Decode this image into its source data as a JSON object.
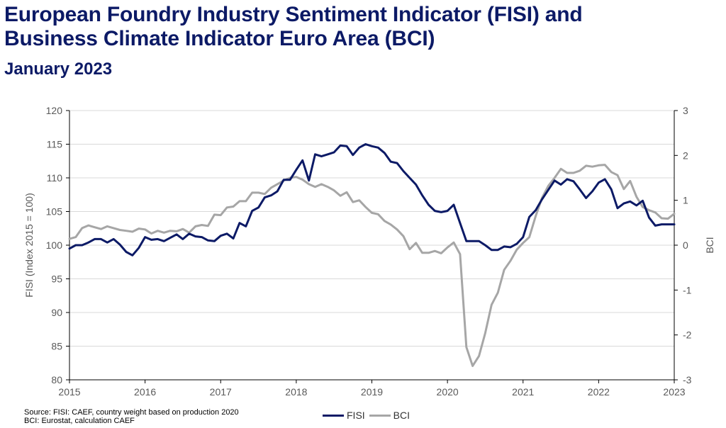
{
  "title_line1": "European Foundry Industry Sentiment Indicator (FISI) and",
  "title_line2": "Business Climate Indicator Euro Area (BCI)",
  "subtitle": "January 2023",
  "source_line1": "Source: FISI: CAEF, country weight based on production 2020",
  "source_line2": "BCI: Eurostat, calculation CAEF",
  "colors": {
    "fisi": "#0c1a66",
    "bci": "#a6a6a6"
  },
  "chart_data": {
    "type": "line",
    "x_unit": "year",
    "x_ticks": [
      "2015",
      "2016",
      "2017",
      "2018",
      "2019",
      "2020",
      "2021",
      "2022",
      "2023"
    ],
    "x_range": [
      2015,
      2023
    ],
    "ylabel": "FISI (Index 2015 = 100)",
    "ylim": [
      80,
      120
    ],
    "y_ticks": [
      "80",
      "85",
      "90",
      "95",
      "100",
      "105",
      "110",
      "115",
      "120"
    ],
    "y2label": "BCI",
    "y2lim": [
      -3,
      3
    ],
    "y2_ticks": [
      "-3",
      "-2",
      "-1",
      "0",
      "1",
      "2",
      "3"
    ],
    "grid": "horizontal",
    "legend_position": "bottom",
    "series": [
      {
        "name": "FISI",
        "axis": "left",
        "x": [
          2015.0,
          2015.083,
          2015.167,
          2015.25,
          2015.333,
          2015.417,
          2015.5,
          2015.583,
          2015.667,
          2015.75,
          2015.833,
          2015.917,
          2016.0,
          2016.083,
          2016.167,
          2016.25,
          2016.333,
          2016.417,
          2016.5,
          2016.583,
          2016.667,
          2016.75,
          2016.833,
          2016.917,
          2017.0,
          2017.083,
          2017.167,
          2017.25,
          2017.333,
          2017.417,
          2017.5,
          2017.583,
          2017.667,
          2017.75,
          2017.833,
          2017.917,
          2018.0,
          2018.083,
          2018.167,
          2018.25,
          2018.333,
          2018.417,
          2018.5,
          2018.583,
          2018.667,
          2018.75,
          2018.833,
          2018.917,
          2019.0,
          2019.083,
          2019.167,
          2019.25,
          2019.333,
          2019.417,
          2019.5,
          2019.583,
          2019.667,
          2019.75,
          2019.833,
          2019.917,
          2020.0,
          2020.083,
          2020.167,
          2020.25,
          2020.333,
          2020.417,
          2020.5,
          2020.583,
          2020.667,
          2020.75,
          2020.833,
          2020.917,
          2021.0,
          2021.083,
          2021.167,
          2021.25,
          2021.333,
          2021.417,
          2021.5,
          2021.583,
          2021.667,
          2021.75,
          2021.833,
          2021.917,
          2022.0,
          2022.083,
          2022.167,
          2022.25,
          2022.333,
          2022.417,
          2022.5,
          2022.583,
          2022.667,
          2022.75,
          2022.833,
          2022.917,
          2023.0
        ],
        "values": [
          99.5,
          100.0,
          100.0,
          100.4,
          100.9,
          100.9,
          100.4,
          100.9,
          100.1,
          99.0,
          98.5,
          99.6,
          101.2,
          100.8,
          100.9,
          100.6,
          101.1,
          101.6,
          100.9,
          101.7,
          101.3,
          101.2,
          100.7,
          100.6,
          101.4,
          101.7,
          101.0,
          103.3,
          102.8,
          105.1,
          105.6,
          107.1,
          107.4,
          108.0,
          109.7,
          109.7,
          111.2,
          112.6,
          109.6,
          113.5,
          113.2,
          113.5,
          113.8,
          114.8,
          114.7,
          113.4,
          114.5,
          115.0,
          114.7,
          114.5,
          113.7,
          112.4,
          112.2,
          111.0,
          110.0,
          109.0,
          107.4,
          106.0,
          105.1,
          104.9,
          105.1,
          106.0,
          103.3,
          100.6,
          100.6,
          100.6,
          100.0,
          99.3,
          99.3,
          99.8,
          99.7,
          100.2,
          101.2,
          104.2,
          105.2,
          106.8,
          108.2,
          109.6,
          109.0,
          109.8,
          109.5,
          108.3,
          107.0,
          108.0,
          109.3,
          109.8,
          108.3,
          105.5,
          106.2,
          106.5,
          105.9,
          106.6,
          104.1,
          102.9,
          103.1,
          103.1,
          103.1
        ]
      },
      {
        "name": "BCI",
        "axis": "right",
        "x": [
          2015.0,
          2015.083,
          2015.167,
          2015.25,
          2015.333,
          2015.417,
          2015.5,
          2015.583,
          2015.667,
          2015.75,
          2015.833,
          2015.917,
          2016.0,
          2016.083,
          2016.167,
          2016.25,
          2016.333,
          2016.417,
          2016.5,
          2016.583,
          2016.667,
          2016.75,
          2016.833,
          2016.917,
          2017.0,
          2017.083,
          2017.167,
          2017.25,
          2017.333,
          2017.417,
          2017.5,
          2017.583,
          2017.667,
          2017.75,
          2017.833,
          2017.917,
          2018.0,
          2018.083,
          2018.167,
          2018.25,
          2018.333,
          2018.417,
          2018.5,
          2018.583,
          2018.667,
          2018.75,
          2018.833,
          2018.917,
          2019.0,
          2019.083,
          2019.167,
          2019.25,
          2019.333,
          2019.417,
          2019.5,
          2019.583,
          2019.667,
          2019.75,
          2019.833,
          2019.917,
          2020.0,
          2020.083,
          2020.167,
          2020.25,
          2020.333,
          2020.417,
          2020.5,
          2020.583,
          2020.667,
          2020.75,
          2020.833,
          2020.917,
          2021.0,
          2021.083,
          2021.167,
          2021.25,
          2021.333,
          2021.417,
          2021.5,
          2021.583,
          2021.667,
          2021.75,
          2021.833,
          2021.917,
          2022.0,
          2022.083,
          2022.167,
          2022.25,
          2022.333,
          2022.417,
          2022.5,
          2022.583,
          2022.667,
          2022.75,
          2022.833,
          2022.917,
          2023.0
        ],
        "values": [
          0.14,
          0.18,
          0.38,
          0.44,
          0.4,
          0.36,
          0.42,
          0.38,
          0.34,
          0.32,
          0.3,
          0.37,
          0.35,
          0.26,
          0.32,
          0.28,
          0.32,
          0.31,
          0.36,
          0.28,
          0.42,
          0.45,
          0.43,
          0.68,
          0.67,
          0.84,
          0.86,
          0.98,
          0.98,
          1.17,
          1.17,
          1.14,
          1.28,
          1.36,
          1.44,
          1.5,
          1.52,
          1.46,
          1.36,
          1.3,
          1.36,
          1.3,
          1.22,
          1.1,
          1.18,
          0.96,
          1.0,
          0.85,
          0.72,
          0.69,
          0.54,
          0.46,
          0.35,
          0.2,
          -0.09,
          0.05,
          -0.17,
          -0.17,
          -0.13,
          -0.18,
          -0.05,
          0.06,
          -0.2,
          -2.27,
          -2.69,
          -2.47,
          -1.96,
          -1.33,
          -1.06,
          -0.55,
          -0.35,
          -0.1,
          0.05,
          0.18,
          0.65,
          1.05,
          1.32,
          1.5,
          1.7,
          1.61,
          1.61,
          1.66,
          1.77,
          1.75,
          1.78,
          1.79,
          1.63,
          1.56,
          1.25,
          1.43,
          1.08,
          0.85,
          0.78,
          0.73,
          0.6,
          0.59,
          0.7
        ]
      }
    ]
  }
}
